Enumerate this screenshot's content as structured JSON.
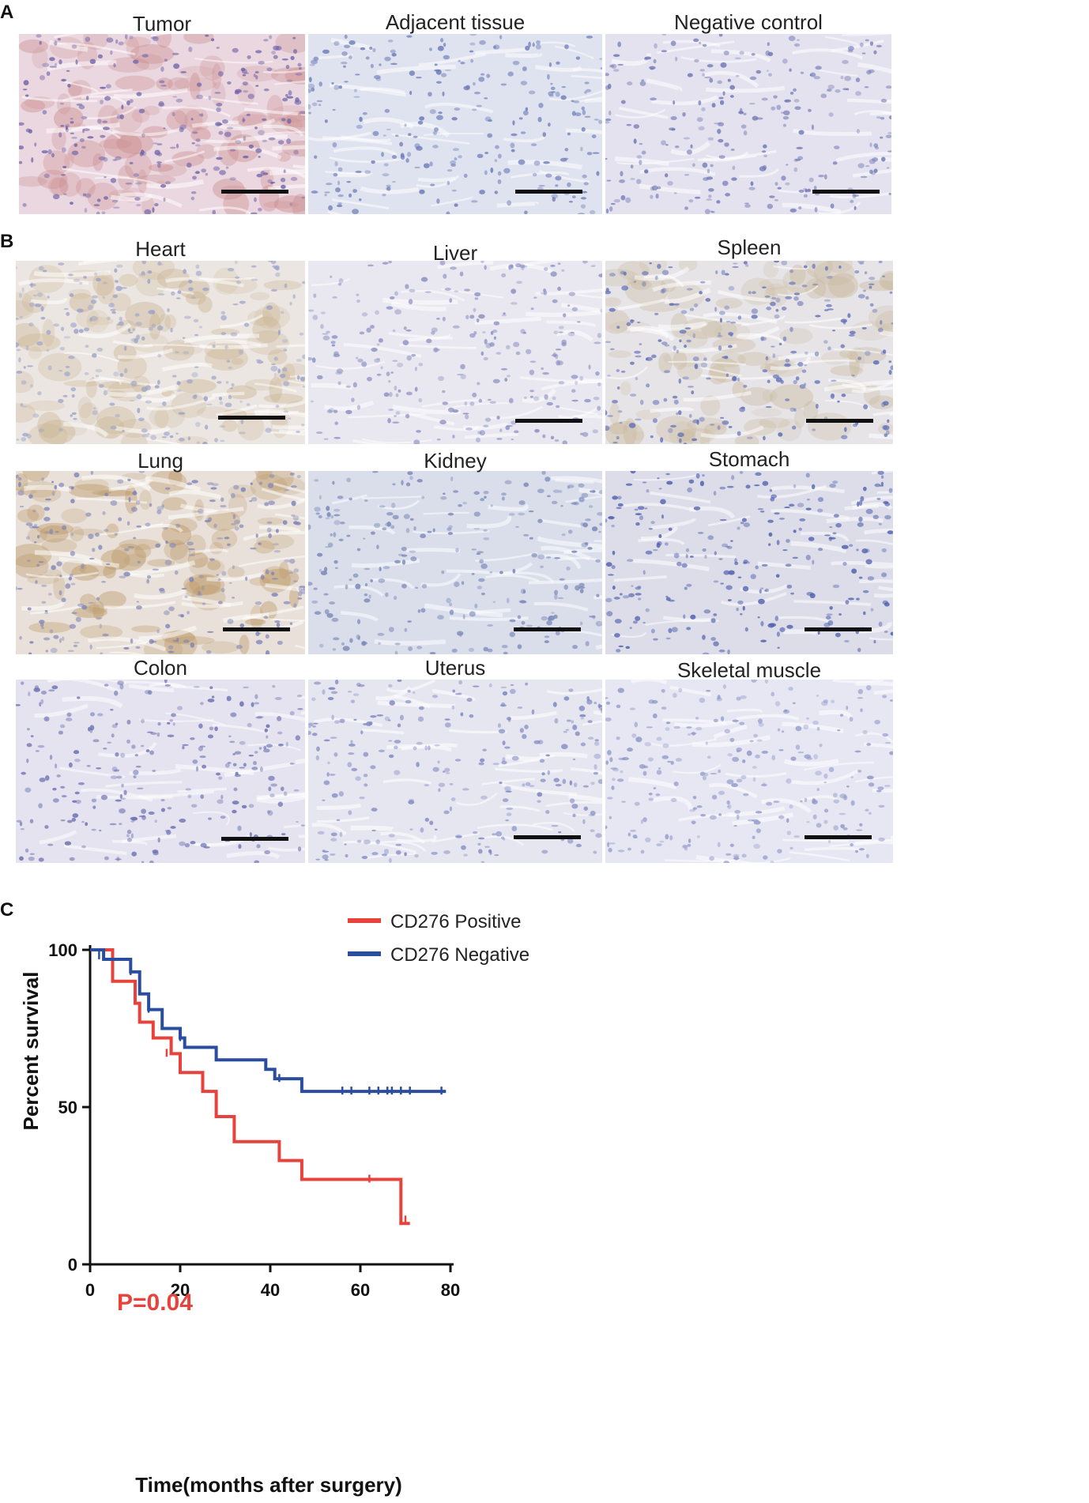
{
  "panels": {
    "a": {
      "letter": "A",
      "tiles": [
        {
          "label": "Tumor",
          "base": "#ead7e0",
          "cell": "#6f63a8",
          "stain": "#c98a8a"
        },
        {
          "label": "Adjacent tissue",
          "base": "#dfe3ef",
          "cell": "#6d7bb8",
          "stain": ""
        },
        {
          "label": "Negative control",
          "base": "#e3e2ee",
          "cell": "#6f77b4",
          "stain": ""
        }
      ]
    },
    "b": {
      "letter": "B",
      "tiles": [
        {
          "label": "Heart",
          "base": "#ece6e3",
          "cell": "#9aa2c8",
          "stain": "#c9b38e"
        },
        {
          "label": "Liver",
          "base": "#e9e7ef",
          "cell": "#8a90c2",
          "stain": ""
        },
        {
          "label": "Spleen",
          "base": "#e7e4e8",
          "cell": "#5f6fb8",
          "stain": "#c8b89a"
        },
        {
          "label": "Lung",
          "base": "#e8e0d9",
          "cell": "#7d83b8",
          "stain": "#b99460"
        },
        {
          "label": "Kidney",
          "base": "#d9deea",
          "cell": "#7785b6",
          "stain": ""
        },
        {
          "label": "Stomach",
          "base": "#dcdde9",
          "cell": "#4f60ad",
          "stain": ""
        },
        {
          "label": "Colon",
          "base": "#e4e3ef",
          "cell": "#6a6fb0",
          "stain": ""
        },
        {
          "label": "Uterus",
          "base": "#e6e6f1",
          "cell": "#7c84be",
          "stain": ""
        },
        {
          "label": "Skeletal muscle",
          "base": "#e6e7f2",
          "cell": "#8f98c8",
          "stain": ""
        }
      ]
    },
    "c": {
      "letter": "C"
    }
  },
  "chart_data": {
    "type": "line",
    "subtype": "kaplan-meier",
    "xlabel": "Time(months after surgery)",
    "ylabel": "Percent survival",
    "xlim": [
      0,
      80
    ],
    "ylim": [
      0,
      100
    ],
    "xticks": [
      0,
      20,
      40,
      60,
      80
    ],
    "yticks": [
      0,
      50,
      100
    ],
    "legend_position": "top-right",
    "annotation": {
      "text": "P=0.04",
      "color": "#e8423c"
    },
    "series": [
      {
        "name": "CD276 Positive",
        "color": "#e8423c",
        "steps": [
          [
            0,
            100
          ],
          [
            5,
            90
          ],
          [
            10,
            83
          ],
          [
            11,
            77
          ],
          [
            14,
            72
          ],
          [
            18,
            67
          ],
          [
            20,
            61
          ],
          [
            25,
            55
          ],
          [
            28,
            47
          ],
          [
            32,
            39
          ],
          [
            42,
            33
          ],
          [
            47,
            27
          ],
          [
            68,
            27
          ],
          [
            69,
            13
          ],
          [
            71,
            13
          ]
        ],
        "censor": [
          [
            17,
            67
          ],
          [
            25,
            56
          ],
          [
            62,
            27
          ],
          [
            70,
            14
          ]
        ]
      },
      {
        "name": "CD276 Negative",
        "color": "#2a4da0",
        "steps": [
          [
            0,
            100
          ],
          [
            3,
            97
          ],
          [
            9,
            93
          ],
          [
            11,
            86
          ],
          [
            13,
            81
          ],
          [
            16,
            75
          ],
          [
            20,
            72
          ],
          [
            21,
            69
          ],
          [
            28,
            65
          ],
          [
            39,
            62
          ],
          [
            41,
            59
          ],
          [
            47,
            55
          ],
          [
            79,
            55
          ]
        ],
        "censor": [
          [
            2,
            98
          ],
          [
            9,
            93
          ],
          [
            13,
            81
          ],
          [
            16,
            76
          ],
          [
            20,
            72
          ],
          [
            39,
            63
          ],
          [
            42,
            59
          ],
          [
            56,
            55
          ],
          [
            58,
            55
          ],
          [
            62,
            55
          ],
          [
            64,
            55
          ],
          [
            66,
            55
          ],
          [
            67,
            55
          ],
          [
            69,
            55
          ],
          [
            71,
            55
          ],
          [
            78,
            55
          ]
        ]
      }
    ]
  }
}
